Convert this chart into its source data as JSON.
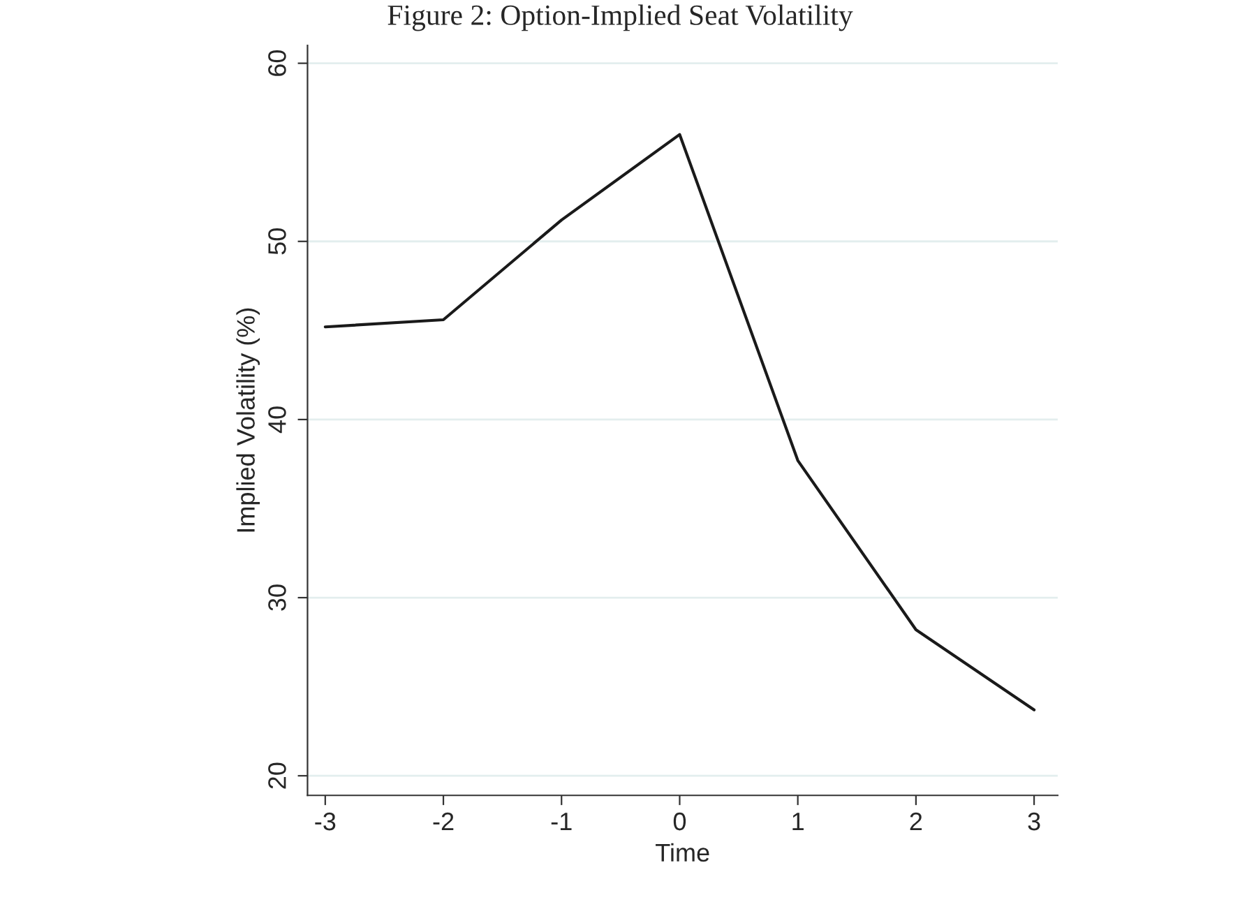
{
  "chart_data": {
    "type": "line",
    "title": "Figure 2: Option-Implied Seat Volatility",
    "xlabel": "Time",
    "ylabel": "Implied Volatility (%)",
    "x": [
      -3,
      -2,
      -1,
      0,
      1,
      2,
      3
    ],
    "series": [
      {
        "color": "#1a1a1a",
        "values": [
          45.2,
          45.6,
          51.2,
          56.0,
          37.7,
          28.2,
          23.7
        ]
      }
    ],
    "xlim": [
      -3.15,
      3.2
    ],
    "ylim": [
      18.9,
      61
    ],
    "xticks": [
      -3,
      -2,
      -1,
      0,
      1,
      2,
      3
    ],
    "yticks": [
      20,
      30,
      40,
      50,
      60
    ],
    "grid": "y"
  }
}
